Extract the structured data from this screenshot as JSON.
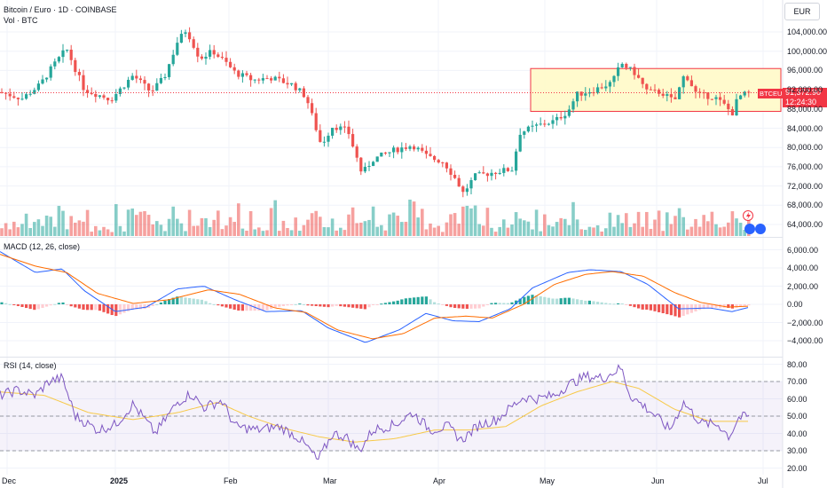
{
  "header": {
    "title": "Bitcoin / Euro · 1D · COINBASE",
    "volume_label": "Vol · BTC",
    "currency": "EUR"
  },
  "price_tag": {
    "symbol": "BTCEUR",
    "price": "91,372.90",
    "countdown": "12:24:30"
  },
  "panes": {
    "macd_label": "MACD (12, 26, close)",
    "rsi_label": "RSI (14, close)"
  },
  "colors": {
    "up": "#26a69a",
    "down": "#ef5350",
    "macd_line": "#2962ff",
    "signal_line": "#ff6d00",
    "rsi_line": "#7e57c2",
    "rsi_ma": "#f7c948",
    "range_fill": "#fff9c4",
    "range_border": "#f23645"
  },
  "chart_data": [
    {
      "type": "candlestick",
      "title": "Bitcoin / Euro · 1D · COINBASE",
      "y_axis_ticks": [
        "104,000.00",
        "100,000.00",
        "96,000.00",
        "92,000.00",
        "88,000.00",
        "84,000.00",
        "80,000.00",
        "76,000.00",
        "72,000.00",
        "68,000.00",
        "64,000.00"
      ],
      "x_axis_ticks": [
        "Dec",
        "2025",
        "Feb",
        "Mar",
        "Apr",
        "May",
        "Jun",
        "Jul"
      ],
      "ylim": [
        62000,
        108000
      ],
      "last_price": 91372.9,
      "highlight_range": {
        "low": 87500,
        "high": 96400,
        "from": "May",
        "to": "Jul"
      },
      "anchors": [
        {
          "x": 0,
          "v": 91500
        },
        {
          "x": 25,
          "v": 90200
        },
        {
          "x": 45,
          "v": 93000
        },
        {
          "x": 60,
          "v": 97000
        },
        {
          "x": 75,
          "v": 100500
        },
        {
          "x": 95,
          "v": 92000
        },
        {
          "x": 125,
          "v": 90000
        },
        {
          "x": 150,
          "v": 95000
        },
        {
          "x": 170,
          "v": 91500
        },
        {
          "x": 185,
          "v": 94500
        },
        {
          "x": 200,
          "v": 102000
        },
        {
          "x": 210,
          "v": 104500
        },
        {
          "x": 225,
          "v": 98500
        },
        {
          "x": 240,
          "v": 100000
        },
        {
          "x": 255,
          "v": 97500
        },
        {
          "x": 265,
          "v": 95500
        },
        {
          "x": 285,
          "v": 94000
        },
        {
          "x": 305,
          "v": 94500
        },
        {
          "x": 330,
          "v": 93000
        },
        {
          "x": 345,
          "v": 90500
        },
        {
          "x": 362,
          "v": 80500
        },
        {
          "x": 375,
          "v": 84500
        },
        {
          "x": 392,
          "v": 83500
        },
        {
          "x": 408,
          "v": 74500
        },
        {
          "x": 420,
          "v": 77500
        },
        {
          "x": 445,
          "v": 79500
        },
        {
          "x": 465,
          "v": 80500
        },
        {
          "x": 482,
          "v": 78000
        },
        {
          "x": 500,
          "v": 77000
        },
        {
          "x": 515,
          "v": 73000
        },
        {
          "x": 522,
          "v": 70500
        },
        {
          "x": 535,
          "v": 74000
        },
        {
          "x": 560,
          "v": 75000
        },
        {
          "x": 578,
          "v": 75500
        },
        {
          "x": 585,
          "v": 83000
        },
        {
          "x": 605,
          "v": 84500
        },
        {
          "x": 625,
          "v": 85500
        },
        {
          "x": 640,
          "v": 87500
        },
        {
          "x": 650,
          "v": 91000
        },
        {
          "x": 670,
          "v": 92000
        },
        {
          "x": 690,
          "v": 93500
        },
        {
          "x": 700,
          "v": 97500
        },
        {
          "x": 715,
          "v": 95500
        },
        {
          "x": 730,
          "v": 91500
        },
        {
          "x": 745,
          "v": 91500
        },
        {
          "x": 760,
          "v": 89500
        },
        {
          "x": 772,
          "v": 95500
        },
        {
          "x": 785,
          "v": 91000
        },
        {
          "x": 805,
          "v": 90500
        },
        {
          "x": 818,
          "v": 88500
        },
        {
          "x": 825,
          "v": 87000
        },
        {
          "x": 832,
          "v": 90500
        },
        {
          "x": 845,
          "v": 91400
        }
      ]
    },
    {
      "type": "line",
      "title": "MACD (12, 26, close)",
      "y_axis_ticks": [
        "6,000.00",
        "4,000.00",
        "2,000.00",
        "0.00",
        "−2,000.00",
        "−4,000.00"
      ],
      "ylim": [
        -5000,
        7000
      ],
      "series": [
        {
          "name": "MACD",
          "anchors": [
            {
              "x": 0,
              "v": 5800
            },
            {
              "x": 40,
              "v": 3500
            },
            {
              "x": 70,
              "v": 3900
            },
            {
              "x": 95,
              "v": 1500
            },
            {
              "x": 130,
              "v": -800
            },
            {
              "x": 165,
              "v": -300
            },
            {
              "x": 200,
              "v": 1700
            },
            {
              "x": 230,
              "v": 2000
            },
            {
              "x": 265,
              "v": 500
            },
            {
              "x": 300,
              "v": -800
            },
            {
              "x": 340,
              "v": -700
            },
            {
              "x": 370,
              "v": -2600
            },
            {
              "x": 412,
              "v": -4200
            },
            {
              "x": 450,
              "v": -2800
            },
            {
              "x": 480,
              "v": -1000
            },
            {
              "x": 510,
              "v": -1800
            },
            {
              "x": 540,
              "v": -1900
            },
            {
              "x": 575,
              "v": -500
            },
            {
              "x": 600,
              "v": 1800
            },
            {
              "x": 640,
              "v": 3500
            },
            {
              "x": 665,
              "v": 3800
            },
            {
              "x": 700,
              "v": 3600
            },
            {
              "x": 730,
              "v": 2200
            },
            {
              "x": 765,
              "v": -500
            },
            {
              "x": 800,
              "v": -400
            },
            {
              "x": 825,
              "v": -800
            },
            {
              "x": 845,
              "v": -300
            }
          ]
        },
        {
          "name": "Signal",
          "anchors": [
            {
              "x": 0,
              "v": 5500
            },
            {
              "x": 40,
              "v": 4200
            },
            {
              "x": 75,
              "v": 3500
            },
            {
              "x": 110,
              "v": 1200
            },
            {
              "x": 150,
              "v": 100
            },
            {
              "x": 190,
              "v": 500
            },
            {
              "x": 235,
              "v": 1600
            },
            {
              "x": 270,
              "v": 1100
            },
            {
              "x": 310,
              "v": -400
            },
            {
              "x": 345,
              "v": -900
            },
            {
              "x": 380,
              "v": -2800
            },
            {
              "x": 420,
              "v": -3800
            },
            {
              "x": 455,
              "v": -3200
            },
            {
              "x": 490,
              "v": -1500
            },
            {
              "x": 525,
              "v": -1300
            },
            {
              "x": 555,
              "v": -1500
            },
            {
              "x": 590,
              "v": 0
            },
            {
              "x": 625,
              "v": 2200
            },
            {
              "x": 660,
              "v": 3300
            },
            {
              "x": 690,
              "v": 3600
            },
            {
              "x": 725,
              "v": 3100
            },
            {
              "x": 760,
              "v": 1300
            },
            {
              "x": 790,
              "v": 200
            },
            {
              "x": 820,
              "v": -300
            },
            {
              "x": 845,
              "v": -200
            }
          ]
        }
      ]
    },
    {
      "type": "line",
      "title": "RSI (14, close)",
      "y_axis_ticks": [
        "80.00",
        "70.00",
        "60.00",
        "50.00",
        "40.00",
        "30.00",
        "20.00"
      ],
      "ylim": [
        17,
        84
      ],
      "bands": [
        30,
        50,
        70
      ],
      "series": [
        {
          "name": "RSI",
          "anchors": [
            {
              "x": 0,
              "v": 62
            },
            {
              "x": 20,
              "v": 65
            },
            {
              "x": 40,
              "v": 62
            },
            {
              "x": 55,
              "v": 70
            },
            {
              "x": 70,
              "v": 72
            },
            {
              "x": 85,
              "v": 50
            },
            {
              "x": 110,
              "v": 42
            },
            {
              "x": 130,
              "v": 45
            },
            {
              "x": 150,
              "v": 57
            },
            {
              "x": 175,
              "v": 40
            },
            {
              "x": 200,
              "v": 58
            },
            {
              "x": 215,
              "v": 63
            },
            {
              "x": 230,
              "v": 55
            },
            {
              "x": 250,
              "v": 59
            },
            {
              "x": 265,
              "v": 44
            },
            {
              "x": 290,
              "v": 42
            },
            {
              "x": 315,
              "v": 44
            },
            {
              "x": 335,
              "v": 38
            },
            {
              "x": 350,
              "v": 30
            },
            {
              "x": 358,
              "v": 24
            },
            {
              "x": 375,
              "v": 40
            },
            {
              "x": 390,
              "v": 38
            },
            {
              "x": 405,
              "v": 30
            },
            {
              "x": 420,
              "v": 42
            },
            {
              "x": 445,
              "v": 45
            },
            {
              "x": 465,
              "v": 52
            },
            {
              "x": 485,
              "v": 42
            },
            {
              "x": 505,
              "v": 44
            },
            {
              "x": 520,
              "v": 36
            },
            {
              "x": 540,
              "v": 45
            },
            {
              "x": 560,
              "v": 48
            },
            {
              "x": 578,
              "v": 56
            },
            {
              "x": 590,
              "v": 61
            },
            {
              "x": 605,
              "v": 60
            },
            {
              "x": 625,
              "v": 62
            },
            {
              "x": 640,
              "v": 68
            },
            {
              "x": 660,
              "v": 73
            },
            {
              "x": 680,
              "v": 72
            },
            {
              "x": 700,
              "v": 78
            },
            {
              "x": 710,
              "v": 62
            },
            {
              "x": 735,
              "v": 52
            },
            {
              "x": 755,
              "v": 42
            },
            {
              "x": 770,
              "v": 58
            },
            {
              "x": 790,
              "v": 46
            },
            {
              "x": 810,
              "v": 45
            },
            {
              "x": 822,
              "v": 38
            },
            {
              "x": 832,
              "v": 49
            },
            {
              "x": 845,
              "v": 50
            }
          ]
        },
        {
          "name": "RSI-based MA",
          "anchors": [
            {
              "x": 0,
              "v": 64
            },
            {
              "x": 50,
              "v": 62
            },
            {
              "x": 100,
              "v": 52
            },
            {
              "x": 150,
              "v": 48
            },
            {
              "x": 200,
              "v": 52
            },
            {
              "x": 245,
              "v": 58
            },
            {
              "x": 280,
              "v": 50
            },
            {
              "x": 320,
              "v": 43
            },
            {
              "x": 360,
              "v": 38
            },
            {
              "x": 400,
              "v": 35
            },
            {
              "x": 445,
              "v": 37
            },
            {
              "x": 490,
              "v": 42
            },
            {
              "x": 530,
              "v": 42
            },
            {
              "x": 570,
              "v": 44
            },
            {
              "x": 610,
              "v": 56
            },
            {
              "x": 650,
              "v": 64
            },
            {
              "x": 690,
              "v": 70
            },
            {
              "x": 720,
              "v": 66
            },
            {
              "x": 760,
              "v": 54
            },
            {
              "x": 800,
              "v": 47
            },
            {
              "x": 845,
              "v": 47
            }
          ]
        }
      ]
    }
  ]
}
